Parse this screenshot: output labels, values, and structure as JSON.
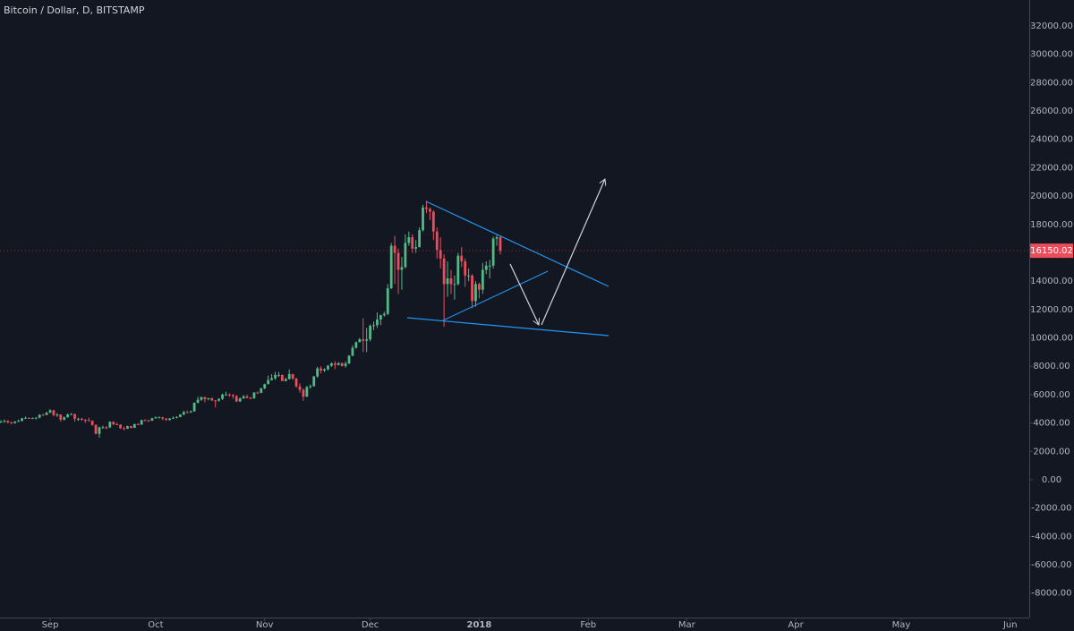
{
  "chart_data": {
    "type": "candlestick",
    "title": "Bitcoin / Dollar, D, BITSTAMP",
    "up_color": "#53b987",
    "down_color": "#eb4d5c",
    "categories": [
      null,
      null,
      null,
      null,
      null,
      null,
      null,
      null,
      null,
      null,
      null,
      null,
      null,
      null,
      null,
      null,
      null,
      null,
      null,
      null,
      null,
      null,
      null,
      null,
      null,
      null,
      null,
      null,
      null,
      null,
      null,
      null,
      null,
      null,
      null,
      null,
      null,
      null,
      null,
      null,
      null,
      null,
      null,
      null,
      null,
      null,
      null,
      null,
      null,
      null,
      null,
      null,
      null,
      null,
      null,
      null,
      null,
      null,
      null,
      null,
      null,
      null,
      null,
      null,
      null,
      null,
      null,
      null,
      null,
      null,
      null,
      null,
      null,
      null,
      null,
      null,
      null,
      null,
      null,
      null,
      null,
      null,
      null,
      null,
      null,
      null,
      null,
      null,
      null,
      null,
      null,
      null,
      null,
      null,
      null,
      null,
      null,
      null,
      null,
      null,
      null,
      null,
      null,
      null,
      null,
      null,
      null,
      null,
      null,
      null,
      null,
      null,
      null,
      null,
      null,
      null,
      null,
      null,
      null,
      null,
      null,
      null,
      null,
      null,
      null,
      null,
      null,
      null,
      null,
      null,
      null,
      null,
      null,
      null,
      null,
      null,
      null,
      null,
      null,
      null,
      null,
      null,
      null
    ],
    "open": [
      4080,
      4100,
      4150,
      4050,
      4000,
      4100,
      4150,
      4330,
      4360,
      4350,
      4350,
      4380,
      4580,
      4570,
      4740,
      4900,
      4560,
      4600,
      4240,
      4400,
      4600,
      4630,
      4300,
      4300,
      4230,
      4200,
      4160,
      3870,
      3240,
      3700,
      3700,
      3690,
      4090,
      3910,
      3880,
      3620,
      3600,
      3780,
      3660,
      3920,
      3890,
      4200,
      4190,
      4160,
      4340,
      4400,
      4400,
      4310,
      4220,
      4320,
      4370,
      4430,
      4600,
      4770,
      4750,
      4820,
      5430,
      5640,
      5830,
      5690,
      5750,
      5600,
      5580,
      5700,
      6000,
      6010,
      5980,
      5900,
      5520,
      5740,
      5880,
      5770,
      5750,
      6150,
      6130,
      6450,
      6740,
      7030,
      7160,
      7390,
      7390,
      6960,
      7100,
      7450,
      7140,
      6580,
      6340,
      5860,
      6530,
      6600,
      7280,
      7850,
      7700,
      7790,
      8040,
      8200,
      8100,
      8230,
      8020,
      8200,
      8750,
      9300,
      9700,
      9900,
      9800,
      9900,
      10850,
      10900,
      11300,
      11600,
      11700,
      13500,
      16500,
      16000,
      14800,
      15000,
      16700,
      17100,
      16300,
      16400,
      17600,
      19200,
      19100,
      18900,
      17500,
      16200,
      15600,
      13800,
      14200,
      13800,
      13800,
      15800,
      15400,
      14400,
      14400,
      12600,
      13800,
      13400,
      14800,
      15100,
      15100,
      17000,
      17100
    ],
    "high": [
      4200,
      4250,
      4190,
      4100,
      4140,
      4240,
      4370,
      4460,
      4400,
      4390,
      4400,
      4620,
      4650,
      4780,
      4980,
      4920,
      4700,
      4610,
      4460,
      4670,
      4700,
      4660,
      4380,
      4370,
      4280,
      4380,
      4180,
      3900,
      3740,
      3820,
      3780,
      4120,
      4110,
      4030,
      3910,
      3750,
      3810,
      3800,
      3960,
      3980,
      4240,
      4270,
      4230,
      4370,
      4470,
      4460,
      4430,
      4350,
      4350,
      4460,
      4470,
      4620,
      4870,
      4880,
      4890,
      5450,
      5850,
      5850,
      5850,
      5780,
      5790,
      5620,
      5750,
      6080,
      6200,
      6080,
      6040,
      5980,
      5800,
      5980,
      6000,
      5850,
      6180,
      6230,
      6470,
      6770,
      7350,
      7450,
      7600,
      7600,
      7420,
      7200,
      7780,
      7460,
      7180,
      6800,
      6440,
      6620,
      6730,
      7320,
      7960,
      8000,
      7860,
      8100,
      8280,
      8370,
      8290,
      8260,
      8350,
      8780,
      9480,
      9740,
      10000,
      11400,
      10700,
      10950,
      11150,
      11800,
      11650,
      11850,
      13800,
      16700,
      17200,
      16300,
      15700,
      17300,
      17500,
      17300,
      16900,
      17800,
      19400,
      19670,
      19200,
      19000,
      17800,
      17100,
      15900,
      15400,
      14800,
      14400,
      16000,
      16400,
      15600,
      14900,
      14500,
      14000,
      13900,
      15300,
      15400,
      15500,
      17150,
      17250,
      17200
    ],
    "low": [
      4000,
      4020,
      3960,
      3900,
      3950,
      4070,
      4110,
      4290,
      4300,
      4310,
      4250,
      4330,
      4520,
      4540,
      4690,
      4470,
      4430,
      4100,
      4170,
      4380,
      4560,
      4100,
      4150,
      4150,
      4000,
      4120,
      3800,
      3200,
      2970,
      3600,
      3560,
      3650,
      3850,
      3850,
      3590,
      3500,
      3580,
      3620,
      3650,
      3850,
      3860,
      4140,
      4080,
      4150,
      4300,
      4350,
      4200,
      4150,
      4160,
      4300,
      4330,
      4400,
      4550,
      4700,
      4710,
      4800,
      5380,
      5560,
      5450,
      5600,
      5550,
      5100,
      5500,
      5620,
      5920,
      5850,
      5720,
      5480,
      5490,
      5700,
      5730,
      5680,
      5700,
      6050,
      6100,
      6380,
      6730,
      7000,
      7040,
      7250,
      6950,
      6920,
      7070,
      7040,
      6480,
      6140,
      5560,
      5840,
      6420,
      6570,
      7200,
      7500,
      7600,
      7700,
      7950,
      7800,
      8050,
      7980,
      7900,
      8150,
      8700,
      9250,
      9700,
      9000,
      9000,
      9750,
      10550,
      10700,
      10900,
      11500,
      11600,
      13450,
      13800,
      13100,
      13400,
      14900,
      16500,
      16000,
      16000,
      16400,
      17500,
      18800,
      18300,
      16900,
      15600,
      14900,
      10800,
      12900,
      13100,
      12700,
      13700,
      15000,
      13600,
      14000,
      12100,
      12200,
      12800,
      13100,
      14500,
      14200,
      14900,
      16500,
      15900
    ],
    "close": [
      4100,
      4150,
      4050,
      4000,
      4100,
      4150,
      4330,
      4360,
      4350,
      4350,
      4380,
      4580,
      4570,
      4740,
      4900,
      4560,
      4600,
      4240,
      4400,
      4600,
      4630,
      4300,
      4300,
      4230,
      4200,
      4160,
      3870,
      3240,
      3700,
      3700,
      3690,
      4090,
      3910,
      3880,
      3620,
      3600,
      3780,
      3660,
      3920,
      3890,
      4200,
      4190,
      4160,
      4340,
      4400,
      4400,
      4310,
      4220,
      4320,
      4370,
      4430,
      4600,
      4770,
      4750,
      4820,
      5430,
      5640,
      5830,
      5690,
      5750,
      5600,
      5580,
      5700,
      6000,
      6010,
      5980,
      5900,
      5520,
      5740,
      5880,
      5770,
      5750,
      6150,
      6130,
      6450,
      6740,
      7030,
      7160,
      7390,
      7390,
      6960,
      7100,
      7450,
      7140,
      6580,
      6340,
      5860,
      6530,
      6600,
      7280,
      7850,
      7700,
      7790,
      8040,
      8200,
      8100,
      8230,
      8020,
      8200,
      8750,
      9300,
      9700,
      9900,
      9800,
      9900,
      10850,
      10900,
      11300,
      11600,
      11700,
      13500,
      16500,
      16000,
      14800,
      15000,
      16700,
      17100,
      16300,
      16400,
      17600,
      19200,
      19100,
      18900,
      17500,
      16200,
      15600,
      13800,
      14200,
      13800,
      13800,
      15800,
      15400,
      14400,
      14400,
      12600,
      13800,
      13400,
      14800,
      15100,
      15100,
      17000,
      17100,
      16150.02
    ],
    "xlim": [
      -0.25,
      292.4
    ],
    "xticks": [
      {
        "value": 14,
        "label": "Sep"
      },
      {
        "value": 44,
        "label": "Oct"
      },
      {
        "value": 75,
        "label": "Nov"
      },
      {
        "value": 105,
        "label": "Dec"
      },
      {
        "value": 136,
        "label": "2018"
      },
      {
        "value": 167,
        "label": "Feb"
      },
      {
        "value": 195,
        "label": "Mar"
      },
      {
        "value": 226,
        "label": "Apr"
      },
      {
        "value": 256,
        "label": "May"
      },
      {
        "value": 287,
        "label": "Jun"
      }
    ],
    "ylim": [
      -9720,
      33830
    ],
    "yticks": [
      {
        "value": -8000,
        "label": "-8000.00"
      },
      {
        "value": -6000,
        "label": "-6000.00"
      },
      {
        "value": -4000,
        "label": "-4000.00"
      },
      {
        "value": -2000,
        "label": "-2000.00"
      },
      {
        "value": 0,
        "label": "0.00"
      },
      {
        "value": 2000,
        "label": "2000.00"
      },
      {
        "value": 4000,
        "label": "4000.00"
      },
      {
        "value": 6000,
        "label": "6000.00"
      },
      {
        "value": 8000,
        "label": "8000.00"
      },
      {
        "value": 10000,
        "label": "10000.00"
      },
      {
        "value": 12000,
        "label": "12000.00"
      },
      {
        "value": 14000,
        "label": "14000.00"
      },
      {
        "value": 16000,
        "label": "16000.00"
      },
      {
        "value": 18000,
        "label": "18000.00"
      },
      {
        "value": 20000,
        "label": "20000.00"
      },
      {
        "value": 22000,
        "label": "22000.00"
      },
      {
        "value": 24000,
        "label": "24000.00"
      },
      {
        "value": 26000,
        "label": "26000.00"
      },
      {
        "value": 28000,
        "label": "28000.00"
      },
      {
        "value": 30000,
        "label": "30000.00"
      },
      {
        "value": 32000,
        "label": "32000.00"
      }
    ],
    "grid": false
  }
}
